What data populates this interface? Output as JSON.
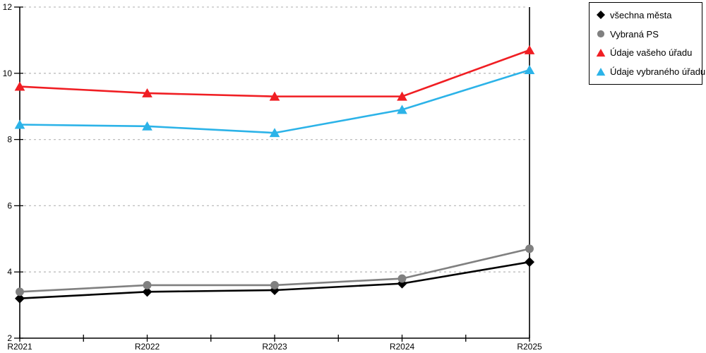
{
  "background": "#ffffff",
  "axis_color": "#000000",
  "grid_color": "#bdbdbd",
  "chart_data": {
    "type": "line",
    "title": "",
    "xlabel": "",
    "ylabel": "",
    "x_labels": [
      "R2021",
      "R2022",
      "R2023",
      "R2024",
      "R2025"
    ],
    "ylim": [
      2,
      12
    ],
    "y_ticks": [
      2,
      4,
      6,
      8,
      10,
      12
    ],
    "grid": "horizontal-dashed",
    "legend_position": "top-right",
    "series": [
      {
        "name": "všechna města",
        "marker": "diamond",
        "color": "#000000",
        "values": [
          3.2,
          3.4,
          3.45,
          3.65,
          4.3
        ]
      },
      {
        "name": "Vybraná PS",
        "marker": "circle",
        "color": "#808080",
        "values": [
          3.4,
          3.6,
          3.6,
          3.8,
          4.7
        ]
      },
      {
        "name": "Údaje vašeho úřadu",
        "marker": "triangle",
        "color": "#f01e23",
        "values": [
          9.6,
          9.4,
          9.3,
          9.3,
          10.7
        ]
      },
      {
        "name": "Údaje vybraného úřadu",
        "marker": "triangle",
        "color": "#2cb3e8",
        "values": [
          8.45,
          8.4,
          8.2,
          8.9,
          10.1
        ]
      }
    ]
  }
}
